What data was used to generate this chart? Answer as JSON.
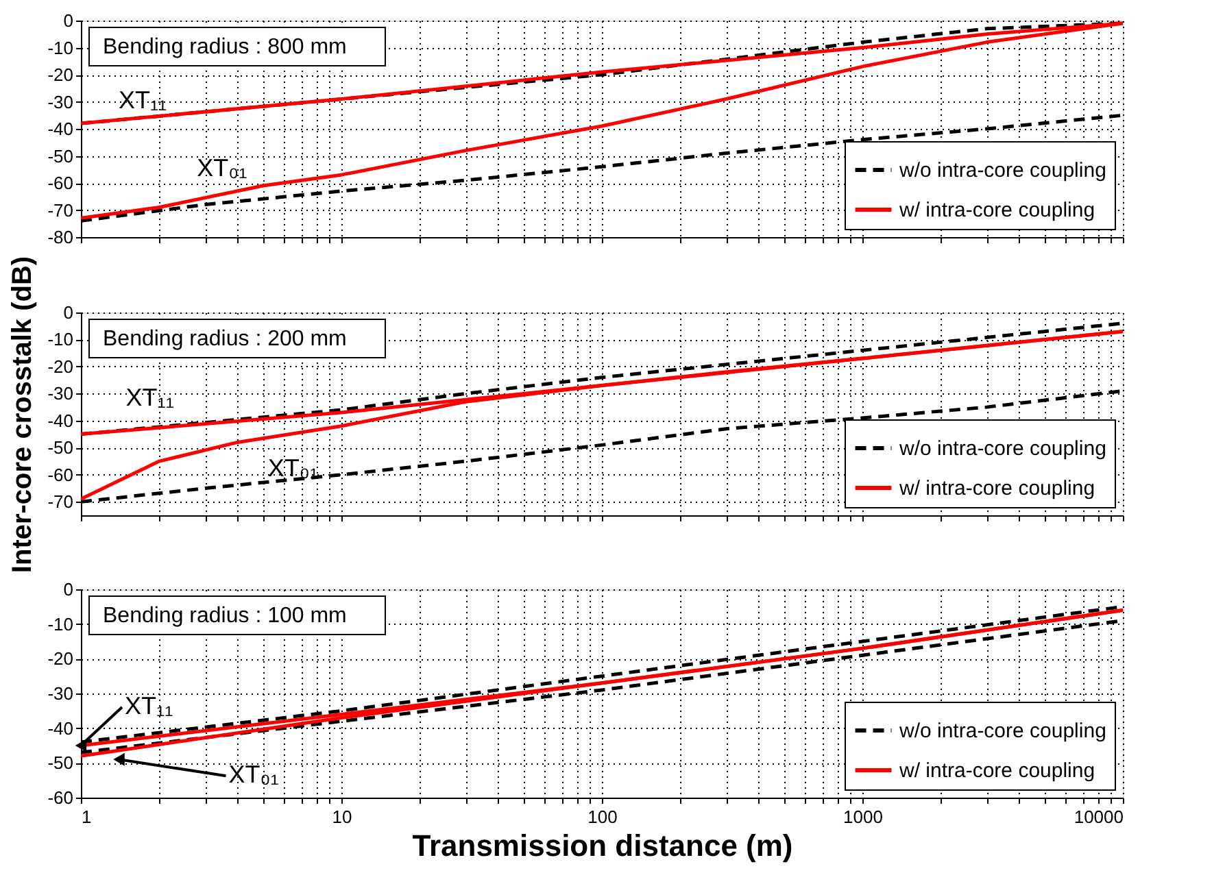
{
  "chart_data": [
    {
      "type": "line",
      "title": "Bending radius : 800 mm",
      "log": "x",
      "grid": true,
      "legend": "bottom right",
      "tick_labels": "y",
      "xlim": [
        1,
        10000
      ],
      "xticks": [
        1,
        {
          "value": 2,
          "label": null
        },
        {
          "value": 3,
          "label": null
        },
        {
          "value": 4,
          "label": null
        },
        {
          "value": 5,
          "label": null
        },
        {
          "value": 6,
          "label": null
        },
        {
          "value": 7,
          "label": null
        },
        {
          "value": 8,
          "label": null
        },
        {
          "value": 9,
          "label": null
        },
        10,
        {
          "value": 20,
          "label": null
        },
        {
          "value": 30,
          "label": null
        },
        {
          "value": 40,
          "label": null
        },
        {
          "value": 50,
          "label": null
        },
        {
          "value": 60,
          "label": null
        },
        {
          "value": 70,
          "label": null
        },
        {
          "value": 80,
          "label": null
        },
        {
          "value": 90,
          "label": null
        },
        100,
        {
          "value": 200,
          "label": null
        },
        {
          "value": 300,
          "label": null
        },
        {
          "value": 400,
          "label": null
        },
        {
          "value": 500,
          "label": null
        },
        {
          "value": 600,
          "label": null
        },
        {
          "value": 700,
          "label": null
        },
        {
          "value": 800,
          "label": null
        },
        {
          "value": 900,
          "label": null
        },
        1000,
        {
          "value": 2000,
          "label": null
        },
        {
          "value": 3000,
          "label": null
        },
        {
          "value": 4000,
          "label": null
        },
        {
          "value": 5000,
          "label": null
        },
        {
          "value": 6000,
          "label": null
        },
        {
          "value": 7000,
          "label": null
        },
        {
          "value": 8000,
          "label": null
        },
        {
          "value": 9000,
          "label": null
        },
        10000
      ],
      "ylim": [
        -80,
        0
      ],
      "yticks": [
        -80,
        -70,
        -60,
        -50,
        -40,
        -30,
        -20,
        -10,
        0
      ],
      "series": [
        {
          "name": "w/o intra-core coupling",
          "color": "#000000",
          "line_style": "dashed",
          "x": [
            1,
            10,
            100,
            1000,
            3000,
            10000
          ],
          "values": [
            -38,
            -29,
            -20,
            -8,
            -3,
            -1
          ]
        },
        {
          "color": "#000000",
          "line_style": "dashed",
          "x": [
            1,
            3,
            10,
            30,
            100,
            300,
            1000,
            3000,
            10000
          ],
          "values": [
            -74,
            -68,
            -63,
            -59,
            -54,
            -49,
            -44,
            -40,
            -35
          ]
        },
        {
          "name": "w/ intra-core coupling",
          "color": "#ff0000",
          "line_style": "solid",
          "x": [
            1,
            10,
            100,
            1000,
            3000,
            10000
          ],
          "values": [
            -38,
            -29,
            -19,
            -10,
            -5,
            -1
          ]
        },
        {
          "color": "#ff0000",
          "line_style": "solid",
          "x": [
            1,
            2,
            5,
            10,
            30,
            100,
            300,
            1000,
            3000,
            10000
          ],
          "values": [
            -73,
            -69,
            -61,
            -57,
            -48,
            -39,
            -29,
            -17,
            -8,
            -1
          ]
        }
      ],
      "annotations": [
        {
          "text": "XT₁₁",
          "x": 1.5,
          "y": -36
        },
        {
          "text": "XT₀₁",
          "x": 3,
          "y": -66
        }
      ]
    },
    {
      "type": "line",
      "title": "Bending radius : 200 mm",
      "ylabel": "Inter-core crosstalk (dB)",
      "log": "x",
      "grid": true,
      "legend": "bottom right",
      "tick_labels": "y",
      "xlim": [
        1,
        10000
      ],
      "xticks": [
        1,
        {
          "value": 2,
          "label": null
        },
        {
          "value": 3,
          "label": null
        },
        {
          "value": 4,
          "label": null
        },
        {
          "value": 5,
          "label": null
        },
        {
          "value": 6,
          "label": null
        },
        {
          "value": 7,
          "label": null
        },
        {
          "value": 8,
          "label": null
        },
        {
          "value": 9,
          "label": null
        },
        10,
        {
          "value": 20,
          "label": null
        },
        {
          "value": 30,
          "label": null
        },
        {
          "value": 40,
          "label": null
        },
        {
          "value": 50,
          "label": null
        },
        {
          "value": 60,
          "label": null
        },
        {
          "value": 70,
          "label": null
        },
        {
          "value": 80,
          "label": null
        },
        {
          "value": 90,
          "label": null
        },
        100,
        {
          "value": 200,
          "label": null
        },
        {
          "value": 300,
          "label": null
        },
        {
          "value": 400,
          "label": null
        },
        {
          "value": 500,
          "label": null
        },
        {
          "value": 600,
          "label": null
        },
        {
          "value": 700,
          "label": null
        },
        {
          "value": 800,
          "label": null
        },
        {
          "value": 900,
          "label": null
        },
        1000,
        {
          "value": 2000,
          "label": null
        },
        {
          "value": 3000,
          "label": null
        },
        {
          "value": 4000,
          "label": null
        },
        {
          "value": 5000,
          "label": null
        },
        {
          "value": 6000,
          "label": null
        },
        {
          "value": 7000,
          "label": null
        },
        {
          "value": 8000,
          "label": null
        },
        {
          "value": 9000,
          "label": null
        },
        10000
      ],
      "ylim": [
        -75,
        0
      ],
      "yticks": [
        -70,
        -60,
        -50,
        -40,
        -30,
        -20,
        -10,
        0
      ],
      "series": [
        {
          "name": "w/o intra-core coupling",
          "color": "#000000",
          "line_style": "dashed",
          "x": [
            1,
            10,
            30,
            100,
            1000,
            10000
          ],
          "values": [
            -45,
            -36,
            -30,
            -24,
            -14,
            -4
          ]
        },
        {
          "color": "#000000",
          "line_style": "dashed",
          "x": [
            1,
            3,
            10,
            30,
            100,
            300,
            1000,
            3000,
            10000
          ],
          "values": [
            -70,
            -65,
            -60,
            -55,
            -49,
            -43,
            -39,
            -35,
            -29
          ]
        },
        {
          "name": "w/ intra-core coupling",
          "color": "#ff0000",
          "line_style": "solid",
          "x": [
            1,
            10,
            50,
            100,
            1000,
            10000
          ],
          "values": [
            -45,
            -37,
            -30,
            -27,
            -17,
            -7
          ]
        },
        {
          "color": "#ff0000",
          "line_style": "solid",
          "x": [
            1,
            2,
            4,
            10,
            30,
            100,
            300,
            1000,
            10000
          ],
          "values": [
            -69,
            -55,
            -48,
            -42,
            -33,
            -27,
            -22,
            -17,
            -7
          ]
        }
      ],
      "annotations": [
        {
          "text": "XT₁₁",
          "x": 1.6,
          "y": -43
        },
        {
          "text": "XT₀₁",
          "x": 4,
          "y": -48
        }
      ]
    },
    {
      "type": "line",
      "title": "Bending radius : 100 mm",
      "xlabel": "Transmission distance (m)",
      "log": "x",
      "grid": true,
      "legend": "bottom right",
      "xlim": [
        1,
        10000
      ],
      "xticks": [
        1,
        {
          "value": 2,
          "label": null
        },
        {
          "value": 3,
          "label": null
        },
        {
          "value": 4,
          "label": null
        },
        {
          "value": 5,
          "label": null
        },
        {
          "value": 6,
          "label": null
        },
        {
          "value": 7,
          "label": null
        },
        {
          "value": 8,
          "label": null
        },
        {
          "value": 9,
          "label": null
        },
        10,
        {
          "value": 20,
          "label": null
        },
        {
          "value": 30,
          "label": null
        },
        {
          "value": 40,
          "label": null
        },
        {
          "value": 50,
          "label": null
        },
        {
          "value": 60,
          "label": null
        },
        {
          "value": 70,
          "label": null
        },
        {
          "value": 80,
          "label": null
        },
        {
          "value": 90,
          "label": null
        },
        100,
        {
          "value": 200,
          "label": null
        },
        {
          "value": 300,
          "label": null
        },
        {
          "value": 400,
          "label": null
        },
        {
          "value": 500,
          "label": null
        },
        {
          "value": 600,
          "label": null
        },
        {
          "value": 700,
          "label": null
        },
        {
          "value": 800,
          "label": null
        },
        {
          "value": 900,
          "label": null
        },
        1000,
        {
          "value": 2000,
          "label": null
        },
        {
          "value": 3000,
          "label": null
        },
        {
          "value": 4000,
          "label": null
        },
        {
          "value": 5000,
          "label": null
        },
        {
          "value": 6000,
          "label": null
        },
        {
          "value": 7000,
          "label": null
        },
        {
          "value": 8000,
          "label": null
        },
        {
          "value": 9000,
          "label": null
        },
        10000
      ],
      "ylim": [
        -60,
        0
      ],
      "yticks": [
        -60,
        -50,
        -40,
        -30,
        -20,
        -10,
        0
      ],
      "series": [
        {
          "name": "w/o intra-core coupling",
          "color": "#000000",
          "line_style": "dashed",
          "x": [
            1,
            10,
            100,
            1000,
            10000
          ],
          "values": [
            -44,
            -35,
            -25,
            -15,
            -5
          ]
        },
        {
          "color": "#000000",
          "line_style": "dashed",
          "x": [
            1,
            10,
            100,
            1000,
            10000
          ],
          "values": [
            -47,
            -38,
            -29,
            -19,
            -9
          ]
        },
        {
          "name": "w/ intra-core coupling",
          "color": "#ff0000",
          "line_style": "solid",
          "x": [
            1,
            10,
            100,
            1000,
            10000
          ],
          "values": [
            -45,
            -36,
            -27,
            -17,
            -6
          ]
        },
        {
          "color": "#ff0000",
          "line_style": "solid",
          "x": [
            1,
            10,
            100,
            1000,
            10000
          ],
          "values": [
            -48,
            -37,
            -27,
            -17,
            -6
          ]
        }
      ],
      "annotations": [
        {
          "text": "XT₁₁",
          "x": 1,
          "y": -45
        },
        {
          "text": "XT₀₁",
          "x": 1.4,
          "y": -49
        }
      ]
    }
  ]
}
